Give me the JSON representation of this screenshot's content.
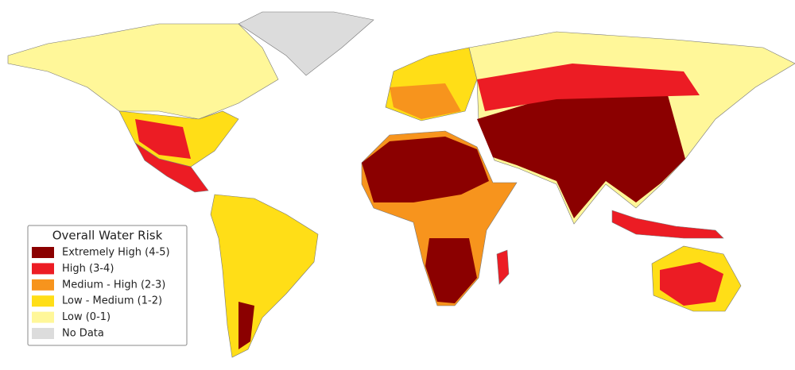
{
  "legend": {
    "title": "Overall Water Risk",
    "items": [
      {
        "label": "Extremely High (4-5)",
        "color": "#8b0000"
      },
      {
        "label": "High (3-4)",
        "color": "#ec1c24"
      },
      {
        "label": "Medium - High (2-3)",
        "color": "#f7941d"
      },
      {
        "label": "Low - Medium (1-2)",
        "color": "#ffde17"
      },
      {
        "label": "Low (0-1)",
        "color": "#fff799"
      },
      {
        "label": "No Data",
        "color": "#dcdcdc"
      }
    ]
  }
}
